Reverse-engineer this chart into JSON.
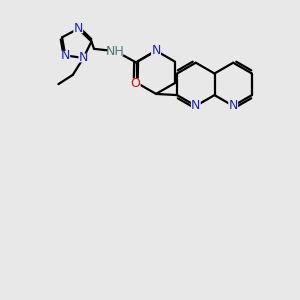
{
  "bg_color": "#e8e8e8",
  "bond_color": "#000000",
  "N_color": "#2020cc",
  "O_color": "#cc1111",
  "H_color": "#4a7a7a",
  "line_width": 1.6,
  "figsize": [
    3.0,
    3.0
  ],
  "dpi": 100,
  "xlim": [
    0,
    10
  ],
  "ylim": [
    0,
    10
  ]
}
